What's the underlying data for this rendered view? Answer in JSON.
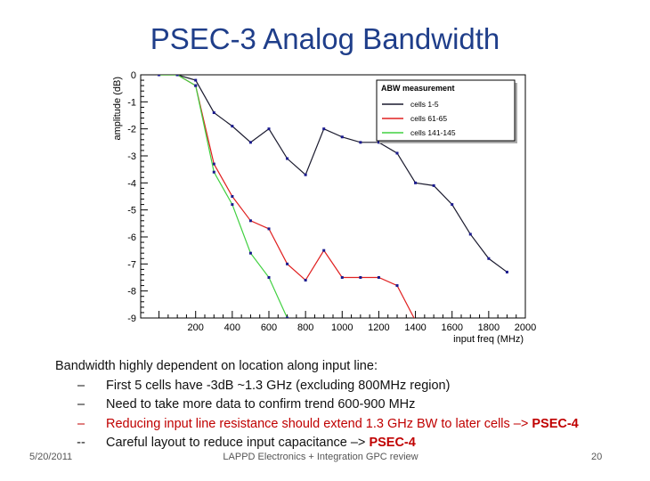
{
  "slide": {
    "title": "PSEC-3 Analog Bandwidth",
    "bullets_heading": "Bandwidth highly dependent on location along input line:",
    "bullets": [
      {
        "dash": "–",
        "text": "First 5 cells have -3dB ~1.3 GHz (excluding 800MHz region)",
        "strong": ""
      },
      {
        "dash": "–",
        "text": "Need to take more data to confirm trend 600-900 MHz",
        "strong": ""
      },
      {
        "dash": "–",
        "text": "Reducing input line resistance should extend 1.3 GHz BW to later cells –> ",
        "strong": "PSEC-4"
      },
      {
        "dash": "--",
        "text": "Careful layout to reduce input capacitance –> ",
        "strong": "PSEC-4"
      }
    ],
    "footer": {
      "date": "5/20/2011",
      "center": "LAPPD Electronics + Integration GPC review",
      "page": "20"
    }
  },
  "colors": {
    "title": "#1f3e8a",
    "red_text": "#c00000",
    "series_black": "#1a1a2e",
    "series_red": "#e02020",
    "series_green": "#40d040",
    "legend_bg": "#ffffff"
  },
  "chart_data": {
    "type": "line",
    "title": "",
    "xlabel": "input freq (MHz)",
    "ylabel": "amplitude (dB)",
    "xlim": [
      -100,
      2000
    ],
    "ylim": [
      -9,
      0
    ],
    "xticks": [
      200,
      400,
      600,
      800,
      1000,
      1200,
      1400,
      1600,
      1800,
      2000
    ],
    "yticks": [
      0,
      -1,
      -2,
      -3,
      -4,
      -5,
      -6,
      -7,
      -8,
      -9
    ],
    "grid": false,
    "legend_position": "top-right",
    "legend_title": "ABW measurement",
    "series": [
      {
        "name": "cells 1-5",
        "color": "#1a1a2e",
        "x": [
          0,
          100,
          200,
          300,
          400,
          500,
          600,
          700,
          800,
          900,
          1000,
          1100,
          1200,
          1300,
          1400,
          1500,
          1600,
          1700,
          1800,
          1900
        ],
        "y": [
          0,
          0,
          -0.2,
          -1.4,
          -1.9,
          -2.5,
          -2.0,
          -3.1,
          -3.7,
          -2.0,
          -2.3,
          -2.5,
          -2.5,
          -2.9,
          -4.0,
          -4.1,
          -4.8,
          -5.9,
          -6.8,
          -7.3
        ]
      },
      {
        "name": "cells 61-65",
        "color": "#e02020",
        "x": [
          0,
          100,
          200,
          300,
          400,
          500,
          600,
          700,
          800,
          900,
          1000,
          1100,
          1200,
          1300,
          1400
        ],
        "y": [
          0,
          0,
          -0.4,
          -3.3,
          -4.5,
          -5.4,
          -5.7,
          -7.0,
          -7.6,
          -6.5,
          -7.5,
          -7.5,
          -7.5,
          -7.8,
          -9.1
        ]
      },
      {
        "name": "cells 141-145",
        "color": "#40d040",
        "x": [
          0,
          100,
          200,
          300,
          400,
          500,
          600,
          700
        ],
        "y": [
          0,
          0,
          -0.4,
          -3.6,
          -4.8,
          -6.6,
          -7.5,
          -9.0
        ]
      }
    ]
  }
}
